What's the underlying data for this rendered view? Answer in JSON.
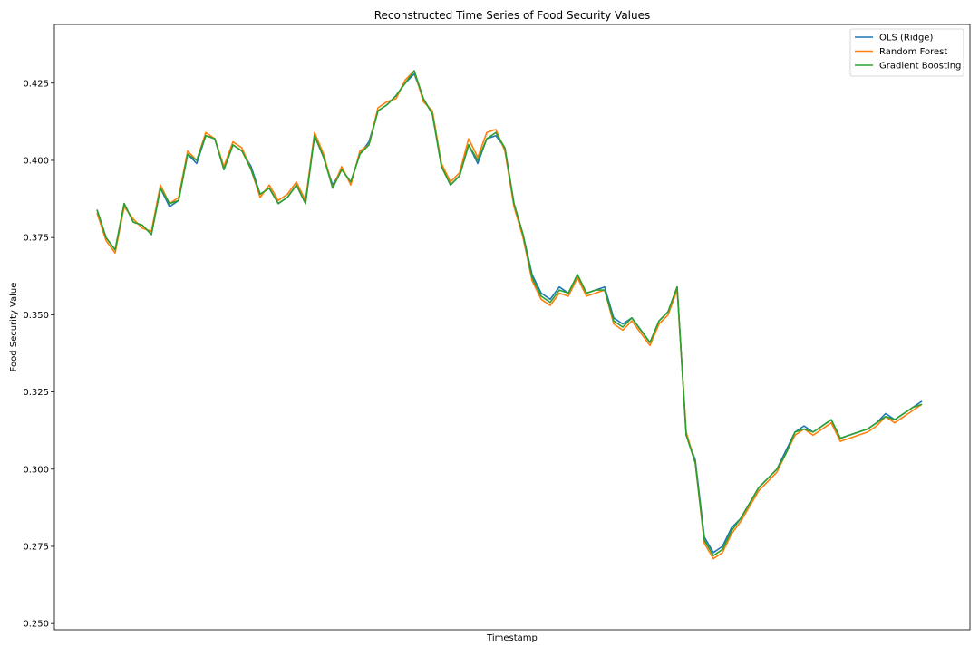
{
  "chart_data": {
    "type": "line",
    "title": "Reconstructed Time Series of Food Security Values",
    "xlabel": "Timestamp",
    "ylabel": "Food Security Value",
    "x": [
      0,
      10,
      20,
      30,
      40,
      50,
      60,
      70,
      80,
      90,
      100,
      110,
      120,
      130,
      140,
      150,
      160,
      170,
      180,
      190,
      200,
      210,
      220,
      230,
      240,
      250,
      260,
      270,
      280,
      290,
      300,
      310,
      320,
      330,
      340,
      350,
      360,
      370,
      380,
      390,
      400,
      410,
      420,
      430,
      440,
      450,
      460,
      470,
      480,
      490,
      500,
      510,
      520,
      530,
      540,
      550,
      560,
      570,
      580,
      590,
      600,
      610,
      620,
      630,
      640,
      650,
      660,
      670,
      680,
      690,
      700,
      710,
      720,
      730,
      740,
      750,
      760,
      770,
      780,
      790,
      800,
      810,
      820,
      830,
      840,
      850,
      860,
      870,
      880,
      890,
      900,
      910
    ],
    "xlim": [
      -47,
      963
    ],
    "x_ticks_visible": false,
    "ylim": [
      0.248,
      0.444
    ],
    "y_ticks": [
      0.25,
      0.275,
      0.3,
      0.325,
      0.35,
      0.375,
      0.4,
      0.425
    ],
    "y_tick_labels": [
      "0.250",
      "0.275",
      "0.300",
      "0.325",
      "0.350",
      "0.375",
      "0.400",
      "0.425"
    ],
    "grid": false,
    "legend_position": "top-right",
    "series": [
      {
        "name": "OLS (Ridge)",
        "color": "#1f77b4",
        "values": [
          0.384,
          0.375,
          0.371,
          0.386,
          0.38,
          0.379,
          0.376,
          0.391,
          0.385,
          0.387,
          0.402,
          0.399,
          0.408,
          0.407,
          0.397,
          0.405,
          0.403,
          0.398,
          0.389,
          0.391,
          0.386,
          0.388,
          0.392,
          0.386,
          0.408,
          0.401,
          0.392,
          0.397,
          0.393,
          0.402,
          0.406,
          0.416,
          0.418,
          0.421,
          0.425,
          0.428,
          0.42,
          0.415,
          0.398,
          0.392,
          0.395,
          0.405,
          0.399,
          0.407,
          0.408,
          0.404,
          0.386,
          0.376,
          0.363,
          0.357,
          0.355,
          0.359,
          0.357,
          0.363,
          0.357,
          0.358,
          0.359,
          0.349,
          0.347,
          0.349,
          0.345,
          0.341,
          0.348,
          0.351,
          0.359,
          0.311,
          0.303,
          0.278,
          0.273,
          0.275,
          0.281,
          0.284,
          0.289,
          0.294,
          0.297,
          0.3,
          0.306,
          0.312,
          0.314,
          0.312,
          0.314,
          0.316,
          0.31,
          0.311,
          0.312,
          0.313,
          0.315,
          0.318,
          0.316,
          0.318,
          0.32,
          0.322
        ]
      },
      {
        "name": "Random Forest",
        "color": "#ff7f0e",
        "values": [
          0.383,
          0.374,
          0.37,
          0.385,
          0.381,
          0.378,
          0.377,
          0.392,
          0.386,
          0.388,
          0.403,
          0.4,
          0.409,
          0.407,
          0.398,
          0.406,
          0.404,
          0.397,
          0.388,
          0.392,
          0.387,
          0.389,
          0.393,
          0.387,
          0.409,
          0.402,
          0.391,
          0.398,
          0.392,
          0.403,
          0.405,
          0.417,
          0.419,
          0.42,
          0.426,
          0.429,
          0.419,
          0.416,
          0.399,
          0.393,
          0.396,
          0.407,
          0.401,
          0.409,
          0.41,
          0.403,
          0.385,
          0.375,
          0.361,
          0.355,
          0.353,
          0.357,
          0.356,
          0.362,
          0.356,
          0.357,
          0.358,
          0.347,
          0.345,
          0.348,
          0.344,
          0.34,
          0.347,
          0.35,
          0.358,
          0.312,
          0.302,
          0.276,
          0.271,
          0.273,
          0.279,
          0.283,
          0.288,
          0.293,
          0.296,
          0.299,
          0.305,
          0.311,
          0.313,
          0.311,
          0.313,
          0.315,
          0.309,
          0.31,
          0.311,
          0.312,
          0.314,
          0.317,
          0.315,
          0.317,
          0.319,
          0.321
        ]
      },
      {
        "name": "Gradient Boosting",
        "color": "#2ca02c",
        "values": [
          0.384,
          0.375,
          0.371,
          0.386,
          0.38,
          0.379,
          0.376,
          0.391,
          0.386,
          0.387,
          0.402,
          0.4,
          0.408,
          0.407,
          0.397,
          0.405,
          0.403,
          0.397,
          0.389,
          0.391,
          0.386,
          0.388,
          0.392,
          0.386,
          0.408,
          0.401,
          0.391,
          0.397,
          0.393,
          0.402,
          0.405,
          0.416,
          0.418,
          0.421,
          0.425,
          0.429,
          0.42,
          0.415,
          0.398,
          0.392,
          0.395,
          0.405,
          0.4,
          0.407,
          0.409,
          0.404,
          0.386,
          0.376,
          0.362,
          0.356,
          0.354,
          0.358,
          0.357,
          0.363,
          0.357,
          0.358,
          0.358,
          0.348,
          0.346,
          0.349,
          0.345,
          0.341,
          0.348,
          0.351,
          0.359,
          0.311,
          0.302,
          0.277,
          0.272,
          0.274,
          0.28,
          0.284,
          0.289,
          0.294,
          0.297,
          0.3,
          0.305,
          0.312,
          0.313,
          0.312,
          0.314,
          0.316,
          0.31,
          0.311,
          0.312,
          0.313,
          0.315,
          0.317,
          0.316,
          0.318,
          0.32,
          0.321
        ]
      }
    ]
  }
}
